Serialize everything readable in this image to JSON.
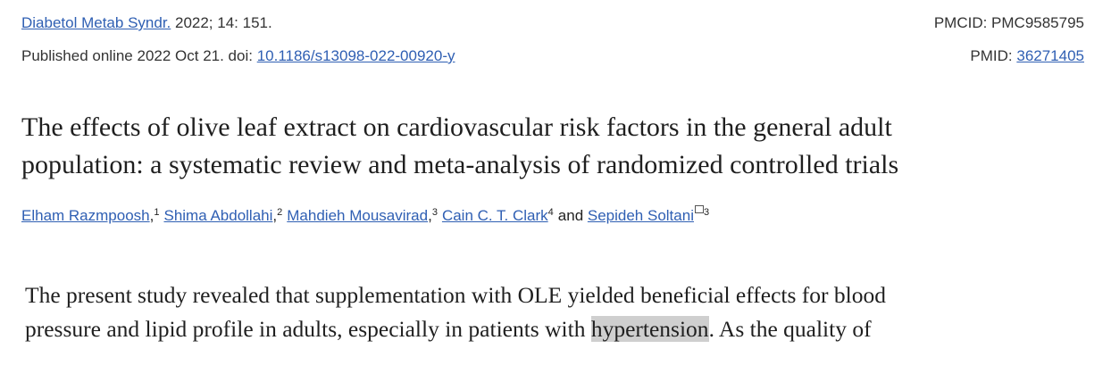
{
  "citation": {
    "journal": "Diabetol Metab Syndr.",
    "details": " 2022; 14: 151.",
    "pmcid": "PMCID: PMC9585795",
    "published": "Published online 2022 Oct 21. doi: ",
    "doi": "10.1186/s13098-022-00920-y",
    "pmid_label": "PMID: ",
    "pmid": "36271405"
  },
  "title": {
    "lines": [
      "The effects of olive leaf extract on cardiovascular risk factors in the general adult",
      "population: a systematic review and meta-analysis of randomized controlled trials"
    ]
  },
  "authors": {
    "list": [
      {
        "name": "Elham Razmpoosh",
        "affiliation": "1",
        "separator": ", "
      },
      {
        "name": "Shima Abdollahi",
        "affiliation": "2",
        "separator": ", "
      },
      {
        "name": "Mahdieh Mousavirad",
        "affiliation": "3",
        "separator": ", "
      },
      {
        "name": "Cain C. T. Clark",
        "affiliation": "4",
        "separator": " "
      },
      {
        "name": "Sepideh Soltani",
        "affiliation": "3"
      }
    ],
    "conjunction": "and "
  },
  "paragraph": {
    "line1": "The present study revealed that supplementation with OLE yielded beneficial effects for blood",
    "line2_before": "pressure and lipid profile in adults, especially in patients with ",
    "highlight": "hypertension",
    "line2_after": ". As the quality of"
  }
}
